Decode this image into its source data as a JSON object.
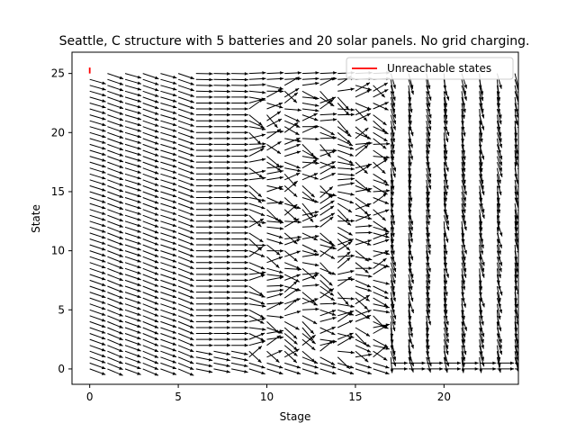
{
  "chart_data": {
    "type": "quiver",
    "title": "Seattle, C structure with 5 batteries and 20 solar panels. No grid charging.",
    "xlabel": "Stage",
    "ylabel": "State",
    "xlim": [
      -1,
      24.2
    ],
    "ylim": [
      -1.3,
      26.8
    ],
    "x_ticks": [
      0,
      5,
      10,
      15,
      20
    ],
    "y_ticks": [
      0,
      5,
      10,
      15,
      20,
      25
    ],
    "grid": false,
    "legend_position": "top-right",
    "legend": [
      {
        "name": "Unreachable states",
        "color": "#ff0000"
      }
    ],
    "unreachable_states": {
      "stage": 0,
      "from_state": 25,
      "to_state": 25.5
    },
    "arrow_color": "#000000",
    "stages": [
      0,
      1,
      2,
      3,
      4,
      5,
      6,
      7,
      8,
      9,
      10,
      11,
      12,
      13,
      14,
      15,
      16,
      17,
      18,
      19,
      20,
      21,
      22,
      23,
      24
    ],
    "states": [
      0,
      25
    ],
    "state_step": 0.5
  }
}
